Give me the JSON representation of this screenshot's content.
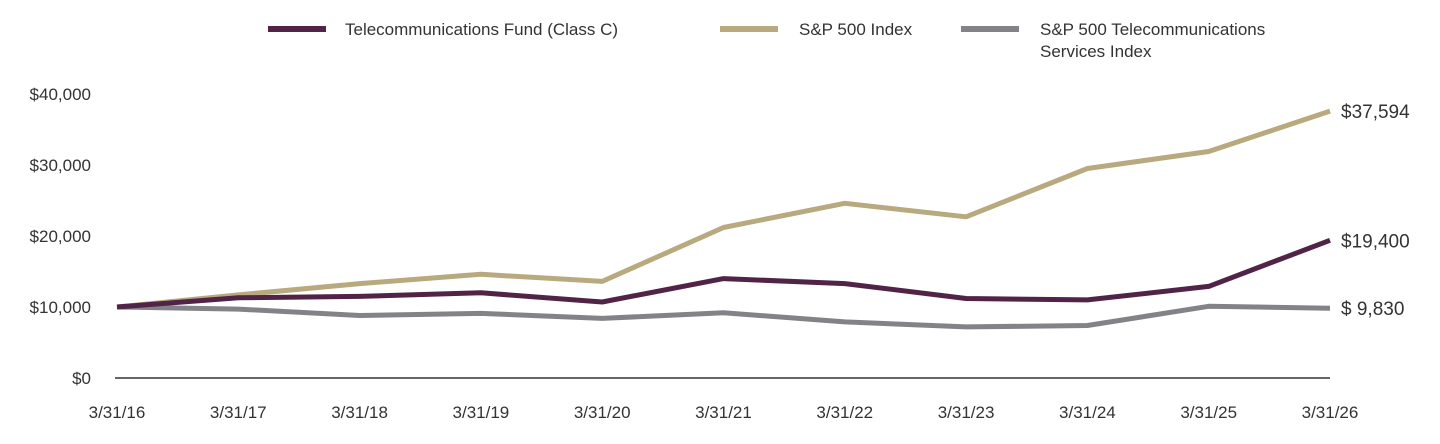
{
  "chart_data": {
    "type": "line",
    "x": [
      "3/31/16",
      "3/31/17",
      "3/31/18",
      "3/31/19",
      "3/31/20",
      "3/31/21",
      "3/31/22",
      "3/31/23",
      "3/31/24",
      "3/31/25",
      "3/31/26"
    ],
    "series": [
      {
        "name": "Telecommunications Fund (Class C)",
        "color": "#512447",
        "values": [
          10000,
          11300,
          11500,
          12000,
          10700,
          14000,
          13300,
          11200,
          11000,
          12900,
          19400
        ],
        "end_label": "$19,400"
      },
      {
        "name": "S&P 500 Index",
        "color": "#b8aa7e",
        "values": [
          10000,
          11700,
          13300,
          14600,
          13600,
          21200,
          24600,
          22700,
          29500,
          31900,
          37594
        ],
        "end_label": "$37,594"
      },
      {
        "name": "S&P 500 Telecommunications Services Index",
        "name_lines": [
          "S&P 500 Telecommunications",
          "Services Index"
        ],
        "color": "#838286",
        "values": [
          10000,
          9700,
          8800,
          9100,
          8400,
          9200,
          7900,
          7200,
          7400,
          10100,
          9830
        ],
        "end_label": "$  9,830"
      }
    ],
    "y_ticks": [
      0,
      10000,
      20000,
      30000,
      40000
    ],
    "y_tick_labels": [
      "$0",
      "$10,000",
      "$20,000",
      "$30,000",
      "$40,000"
    ],
    "ylim": [
      0,
      40000
    ],
    "title": "",
    "xlabel": "",
    "ylabel": "",
    "grid": false,
    "legend_position": "top"
  }
}
